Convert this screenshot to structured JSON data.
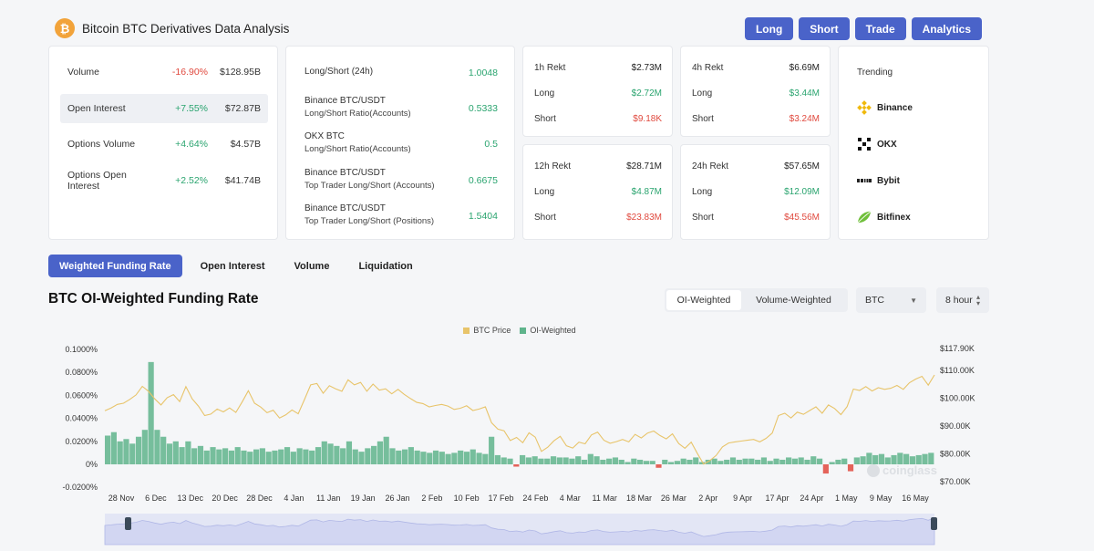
{
  "header": {
    "logo_glyph": "₿",
    "title": "Bitcoin BTC Derivatives Data Analysis"
  },
  "nav": {
    "long": "Long",
    "short": "Short",
    "trade": "Trade",
    "analytics": "Analytics"
  },
  "stats": [
    {
      "label": "Volume",
      "change": "-16.90%",
      "amount": "$128.95B"
    },
    {
      "label": "Open Interest",
      "change": "+7.55%",
      "amount": "$72.87B"
    },
    {
      "label": "Options Volume",
      "change": "+4.64%",
      "amount": "$4.57B"
    },
    {
      "label": "Options Open Interest",
      "change": "+2.52%",
      "amount": "$41.74B"
    }
  ],
  "ratios": [
    {
      "title": "Long/Short (24h)",
      "subtitle": "",
      "value": "1.0048"
    },
    {
      "title": "Binance BTC/USDT",
      "subtitle": "Long/Short Ratio(Accounts)",
      "value": "0.5333"
    },
    {
      "title": "OKX BTC",
      "subtitle": "Long/Short Ratio(Accounts)",
      "value": "0.5"
    },
    {
      "title": "Binance BTC/USDT",
      "subtitle": "Top Trader Long/Short (Accounts)",
      "value": "0.6675"
    },
    {
      "title": "Binance BTC/USDT",
      "subtitle": "Top Trader Long/Short (Positions)",
      "value": "1.5404"
    }
  ],
  "rekt": {
    "h1": {
      "title": "1h Rekt",
      "total": "$2.73M",
      "long_label": "Long",
      "long": "$2.72M",
      "short_label": "Short",
      "short": "$9.18K"
    },
    "h4": {
      "title": "4h Rekt",
      "total": "$6.69M",
      "long_label": "Long",
      "long": "$3.44M",
      "short_label": "Short",
      "short": "$3.24M"
    },
    "h12": {
      "title": "12h Rekt",
      "total": "$28.71M",
      "long_label": "Long",
      "long": "$4.87M",
      "short_label": "Short",
      "short": "$23.83M"
    },
    "h24": {
      "title": "24h Rekt",
      "total": "$57.65M",
      "long_label": "Long",
      "long": "$12.09M",
      "short_label": "Short",
      "short": "$45.56M"
    }
  },
  "trending": {
    "title": "Trending",
    "items": [
      "Binance",
      "OKX",
      "Bybit",
      "Bitfinex"
    ]
  },
  "tabs": [
    "Weighted Funding Rate",
    "Open Interest",
    "Volume",
    "Liquidation"
  ],
  "chart_title": "BTC OI-Weighted Funding Rate",
  "weighting": {
    "oi": "OI-Weighted",
    "volume": "Volume-Weighted"
  },
  "coin_select": "BTC",
  "interval_select": "8 hour",
  "watermark": "coinglass",
  "chart_data": {
    "type": "line",
    "legend": [
      "BTC Price",
      "OI-Weighted"
    ],
    "colors": {
      "price": "#e8c46a",
      "funding_pos": "#5fb48c",
      "funding_neg": "#e0493e"
    },
    "y_left_ticks": [
      "0.1000%",
      "0.0800%",
      "0.0600%",
      "0.0400%",
      "0.0200%",
      "0%",
      "-0.0200%"
    ],
    "y_right_ticks": [
      "$117.90K",
      "$110.00K",
      "$100.00K",
      "$90.00K",
      "$80.00K",
      "$70.00K"
    ],
    "x_ticks": [
      "28 Nov",
      "6 Dec",
      "13 Dec",
      "20 Dec",
      "28 Dec",
      "4 Jan",
      "11 Jan",
      "19 Jan",
      "26 Jan",
      "2 Feb",
      "10 Feb",
      "17 Feb",
      "24 Feb",
      "4 Mar",
      "11 Mar",
      "18 Mar",
      "26 Mar",
      "2 Apr",
      "9 Apr",
      "17 Apr",
      "24 Apr",
      "1 May",
      "9 May",
      "16 May"
    ],
    "ylim_left": [
      -0.02,
      0.1
    ],
    "ylim_right": [
      70000,
      117900
    ],
    "series": [
      {
        "name": "BTC Price",
        "axis": "right",
        "values": [
          95500,
          96500,
          97800,
          98200,
          99600,
          101200,
          104300,
          102500,
          99800,
          97600,
          100200,
          101300,
          98800,
          104200,
          99800,
          97200,
          93800,
          94300,
          96100,
          95100,
          96500,
          94900,
          98600,
          102700,
          98200,
          96800,
          94800,
          95700,
          92900,
          94000,
          95800,
          94400,
          99500,
          104800,
          105300,
          101800,
          104500,
          103400,
          102500,
          106600,
          104800,
          105700,
          102500,
          105100,
          102900,
          103400,
          101600,
          103200,
          101400,
          99900,
          98500,
          98100,
          96900,
          97400,
          97800,
          97200,
          96000,
          96400,
          97300,
          95600,
          96100,
          96900,
          91200,
          88900,
          88300,
          84800,
          85900,
          84000,
          87600,
          86000,
          80900,
          82400,
          84700,
          86300,
          82900,
          82100,
          84200,
          83600,
          86800,
          87800,
          84900,
          83800,
          84400,
          85200,
          84300,
          87000,
          85700,
          87500,
          88200,
          86600,
          85400,
          87200,
          83700,
          82000,
          84200,
          80100,
          76300,
          77600,
          79400,
          82500,
          83900,
          84300,
          84600,
          84900,
          85200,
          84300,
          85600,
          87500,
          93800,
          94600,
          92900,
          95000,
          94200,
          95600,
          96900,
          94600,
          97600,
          96300,
          94100,
          97000,
          103300,
          102800,
          104200,
          102600,
          103800,
          103200,
          103600,
          104600,
          103200,
          105600,
          106900,
          107900,
          104700,
          108400
        ]
      },
      {
        "name": "OI-Weighted",
        "axis": "left",
        "values": [
          0.025,
          0.028,
          0.02,
          0.022,
          0.018,
          0.024,
          0.03,
          0.089,
          0.03,
          0.024,
          0.018,
          0.02,
          0.015,
          0.02,
          0.014,
          0.016,
          0.012,
          0.015,
          0.013,
          0.014,
          0.012,
          0.015,
          0.012,
          0.011,
          0.013,
          0.014,
          0.011,
          0.012,
          0.013,
          0.015,
          0.011,
          0.014,
          0.013,
          0.012,
          0.015,
          0.02,
          0.018,
          0.016,
          0.014,
          0.02,
          0.013,
          0.011,
          0.014,
          0.016,
          0.02,
          0.024,
          0.014,
          0.012,
          0.013,
          0.015,
          0.012,
          0.011,
          0.01,
          0.012,
          0.011,
          0.009,
          0.01,
          0.012,
          0.011,
          0.013,
          0.01,
          0.009,
          0.024,
          0.008,
          0.006,
          0.005,
          -0.002,
          0.008,
          0.006,
          0.007,
          0.005,
          0.005,
          0.007,
          0.006,
          0.006,
          0.005,
          0.007,
          0.004,
          0.009,
          0.007,
          0.004,
          0.005,
          0.006,
          0.004,
          0.002,
          0.005,
          0.004,
          0.003,
          0.003,
          -0.003,
          0.004,
          0.002,
          0.003,
          0.005,
          0.004,
          0.006,
          0.002,
          0.004,
          0.005,
          0.003,
          0.004,
          0.006,
          0.004,
          0.005,
          0.005,
          0.004,
          0.006,
          0.003,
          0.005,
          0.004,
          0.006,
          0.005,
          0.006,
          0.004,
          0.007,
          0.005,
          -0.008,
          0.002,
          0.004,
          0.005,
          -0.006,
          0.006,
          0.007,
          0.01,
          0.008,
          0.009,
          0.006,
          0.008,
          0.01,
          0.009,
          0.007,
          0.008,
          0.009,
          0.01
        ]
      }
    ]
  }
}
